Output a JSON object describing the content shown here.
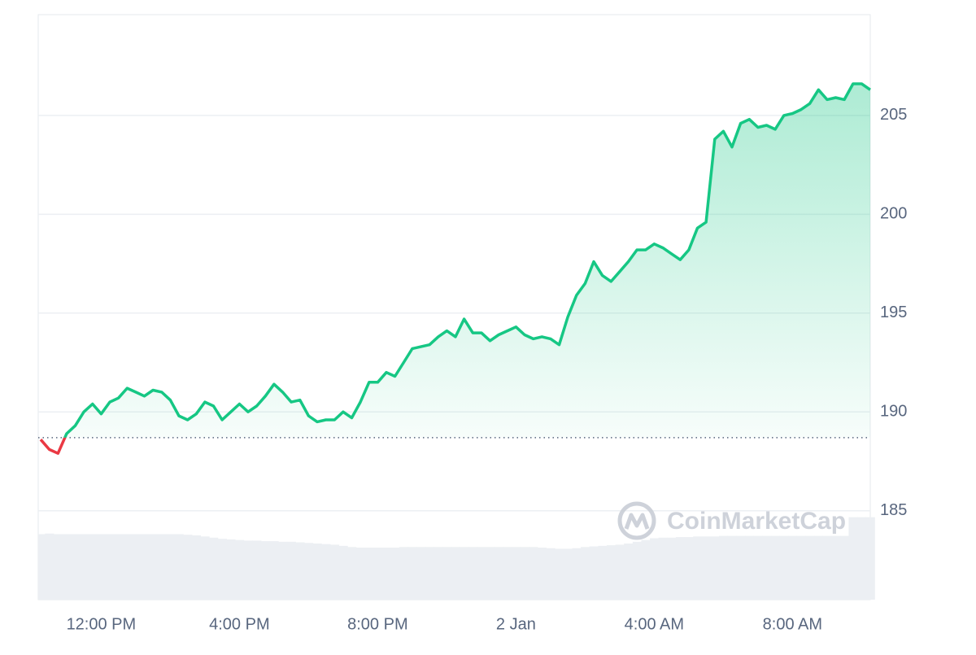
{
  "chart_data": {
    "type": "line",
    "watermark": "CoinMarketCap",
    "categories": [
      null,
      null,
      null,
      null,
      null,
      null,
      null,
      "12:00 PM",
      null,
      null,
      null,
      null,
      null,
      null,
      null,
      null,
      null,
      null,
      null,
      null,
      null,
      null,
      null,
      "4:00 PM",
      null,
      null,
      null,
      null,
      null,
      null,
      null,
      null,
      null,
      null,
      null,
      null,
      null,
      null,
      null,
      "8:00 PM",
      null,
      null,
      null,
      null,
      null,
      null,
      null,
      null,
      null,
      null,
      null,
      null,
      null,
      null,
      null,
      "2 Jan",
      null,
      null,
      null,
      null,
      null,
      null,
      null,
      null,
      null,
      null,
      null,
      null,
      null,
      null,
      null,
      "4:00 AM",
      null,
      null,
      null,
      null,
      null,
      null,
      null,
      null,
      null,
      null,
      null,
      null,
      null,
      null,
      null,
      "8:00 AM",
      null,
      null,
      null,
      null,
      null,
      null,
      null,
      null,
      null
    ],
    "values": [
      188.6,
      188.1,
      187.9,
      188.9,
      189.3,
      190.0,
      190.4,
      189.9,
      190.5,
      190.7,
      191.2,
      191.0,
      190.8,
      191.1,
      191.0,
      190.6,
      189.8,
      189.6,
      189.9,
      190.5,
      190.3,
      189.6,
      190.0,
      190.4,
      190.0,
      190.3,
      190.8,
      191.4,
      191.0,
      190.5,
      190.6,
      189.8,
      189.5,
      189.6,
      189.6,
      190.0,
      189.7,
      190.5,
      191.5,
      191.5,
      192.0,
      191.8,
      192.5,
      193.2,
      193.3,
      193.4,
      193.8,
      194.1,
      193.8,
      194.7,
      194.0,
      194.0,
      193.6,
      193.9,
      194.1,
      194.3,
      193.9,
      193.7,
      193.8,
      193.7,
      193.4,
      194.8,
      195.9,
      196.5,
      197.6,
      196.9,
      196.6,
      197.1,
      197.6,
      198.2,
      198.2,
      198.5,
      198.3,
      198.0,
      197.7,
      198.2,
      199.3,
      199.6,
      203.8,
      204.2,
      203.4,
      204.6,
      204.8,
      204.4,
      204.5,
      204.3,
      205.0,
      205.1,
      205.3,
      205.6,
      206.3,
      205.8,
      205.9,
      205.8,
      206.6,
      206.6,
      206.3
    ],
    "baseline": 188.7,
    "up_color": "#16c784",
    "down_color": "#ea3943",
    "volume": {
      "color": "#eceff3",
      "vlim": [
        0,
        100
      ],
      "values": [
        11.2,
        11.3,
        11.2,
        11.2,
        11.2,
        11.2,
        11.2,
        11.2,
        11.2,
        11.2,
        11.2,
        11.2,
        11.2,
        11.2,
        11.2,
        11.2,
        11.2,
        11.1,
        11.0,
        10.8,
        10.6,
        10.4,
        10.3,
        10.2,
        10.1,
        10.1,
        10.0,
        10.0,
        9.9,
        9.9,
        9.8,
        9.7,
        9.6,
        9.5,
        9.4,
        9.2,
        9.0,
        8.9,
        8.9,
        8.9,
        8.9,
        8.9,
        9.0,
        9.0,
        9.0,
        9.0,
        9.0,
        9.0,
        9.0,
        9.0,
        9.0,
        9.0,
        9.0,
        9.0,
        9.0,
        9.0,
        9.0,
        9.0,
        8.9,
        8.8,
        8.7,
        8.7,
        8.8,
        9.0,
        9.1,
        9.2,
        9.3,
        9.4,
        9.6,
        9.9,
        10.2,
        10.5,
        10.6,
        10.6,
        10.7,
        10.7,
        10.8,
        10.8,
        10.8,
        10.9,
        10.9,
        10.9,
        10.9,
        10.9,
        10.9,
        10.9,
        10.9,
        10.9,
        10.9,
        10.9,
        10.9,
        10.9,
        10.9,
        10.9,
        14.1,
        14.1,
        14.1
      ]
    },
    "ylim": [
      180.5,
      210.1
    ],
    "yticks": [
      185,
      190,
      195,
      200,
      205
    ],
    "grid": true
  }
}
